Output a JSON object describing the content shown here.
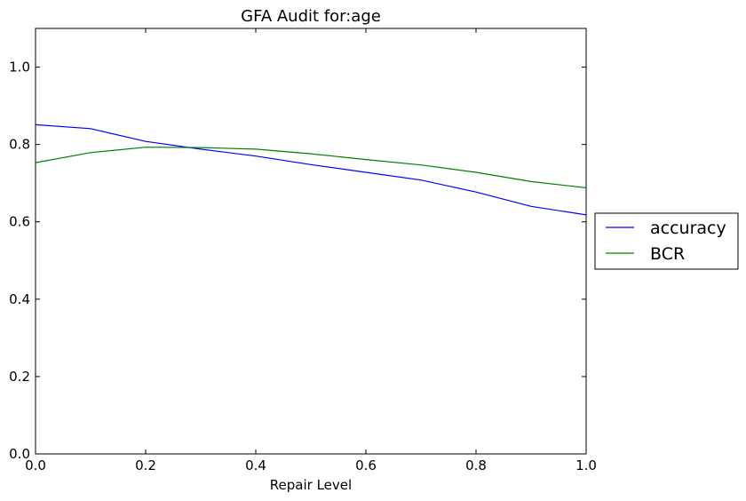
{
  "chart_data": {
    "type": "line",
    "title": "GFA Audit for:age",
    "xlabel": "Repair Level",
    "ylabel": "",
    "xlim": [
      0.0,
      1.0
    ],
    "ylim": [
      0.0,
      1.1
    ],
    "x_ticks": [
      "0.0",
      "0.2",
      "0.4",
      "0.6",
      "0.8",
      "1.0"
    ],
    "y_ticks": [
      "0.0",
      "0.2",
      "0.4",
      "0.6",
      "0.8",
      "1.0"
    ],
    "grid": false,
    "legend_position": "outside-right",
    "x": [
      0.0,
      0.1,
      0.2,
      0.3,
      0.4,
      0.5,
      0.6,
      0.7,
      0.8,
      0.9,
      1.0
    ],
    "series": [
      {
        "name": "accuracy",
        "color": "#0000ff",
        "values": [
          0.851,
          0.841,
          0.808,
          0.788,
          0.77,
          0.748,
          0.728,
          0.708,
          0.677,
          0.64,
          0.618
        ]
      },
      {
        "name": "BCR",
        "color": "#008000",
        "values": [
          0.753,
          0.779,
          0.793,
          0.792,
          0.788,
          0.776,
          0.761,
          0.747,
          0.728,
          0.704,
          0.688
        ]
      }
    ]
  }
}
